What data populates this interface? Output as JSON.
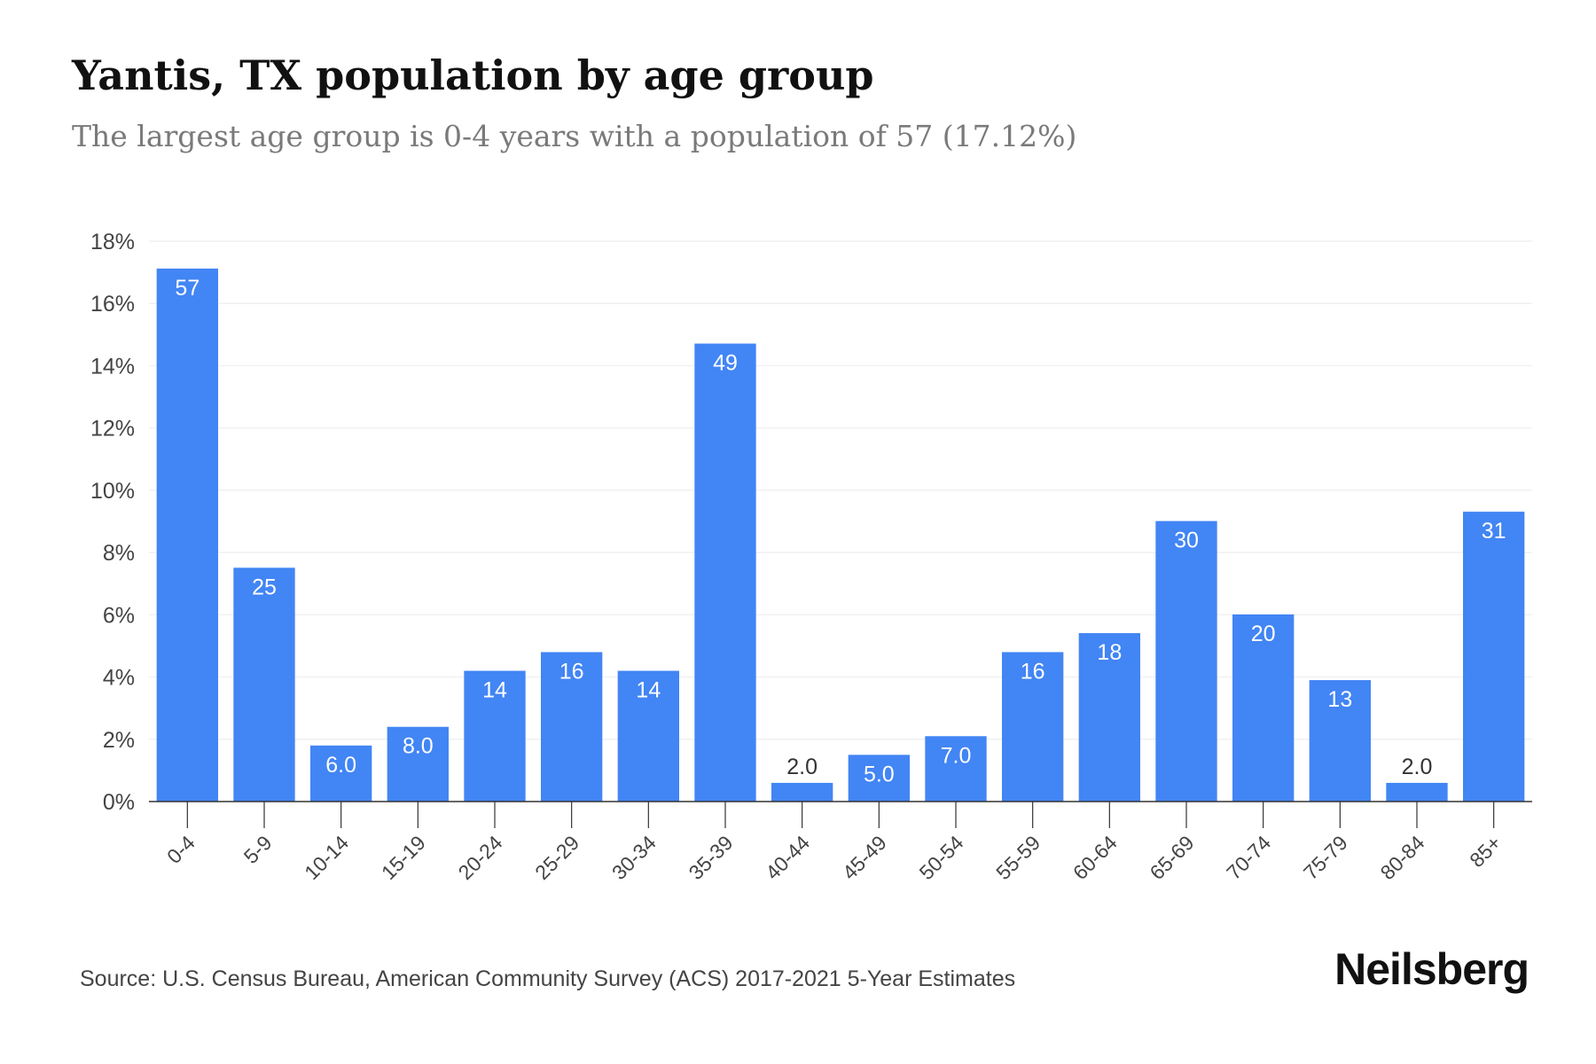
{
  "header": {
    "title": "Yantis, TX population by age group",
    "subtitle": "The largest age group is 0-4 years with a population of 57 (17.12%)"
  },
  "footer": {
    "source": "Source: U.S. Census Bureau, American Community Survey (ACS) 2017-2021 5-Year Estimates",
    "brand": "Neilsberg"
  },
  "colors": {
    "bar": "#4285f4",
    "bar_label": "#ffffff",
    "outside_label": "#333333",
    "axis_text": "#444444",
    "gridline": "#eeeeee",
    "axis_line": "#333333"
  },
  "chart_data": {
    "type": "bar",
    "title": "Yantis, TX population by age group",
    "subtitle": "The largest age group is 0-4 years with a population of 57 (17.12%)",
    "xlabel": "",
    "ylabel": "",
    "categories": [
      "0-4",
      "5-9",
      "10-14",
      "15-19",
      "20-24",
      "25-29",
      "30-34",
      "35-39",
      "40-44",
      "45-49",
      "50-54",
      "55-59",
      "60-64",
      "65-69",
      "70-74",
      "75-79",
      "80-84",
      "85+"
    ],
    "population": [
      57,
      25,
      6,
      8,
      14,
      16,
      14,
      49,
      2,
      5,
      7,
      16,
      18,
      30,
      20,
      13,
      2,
      31
    ],
    "data_labels": [
      "57",
      "25",
      "6.0",
      "8.0",
      "14",
      "16",
      "14",
      "49",
      "2.0",
      "5.0",
      "7.0",
      "16",
      "18",
      "30",
      "20",
      "13",
      "2.0",
      "31"
    ],
    "percent": [
      17.12,
      7.51,
      1.8,
      2.4,
      4.2,
      4.8,
      4.2,
      14.71,
      0.6,
      1.5,
      2.1,
      4.8,
      5.41,
      9.01,
      6.01,
      3.9,
      0.6,
      9.31
    ],
    "ylim": [
      0,
      18
    ],
    "yticks": [
      0,
      2,
      4,
      6,
      8,
      10,
      12,
      14,
      16,
      18
    ],
    "ytick_labels": [
      "0%",
      "2%",
      "4%",
      "6%",
      "8%",
      "10%",
      "12%",
      "14%",
      "16%",
      "18%"
    ],
    "grid": true,
    "legend": "none"
  }
}
